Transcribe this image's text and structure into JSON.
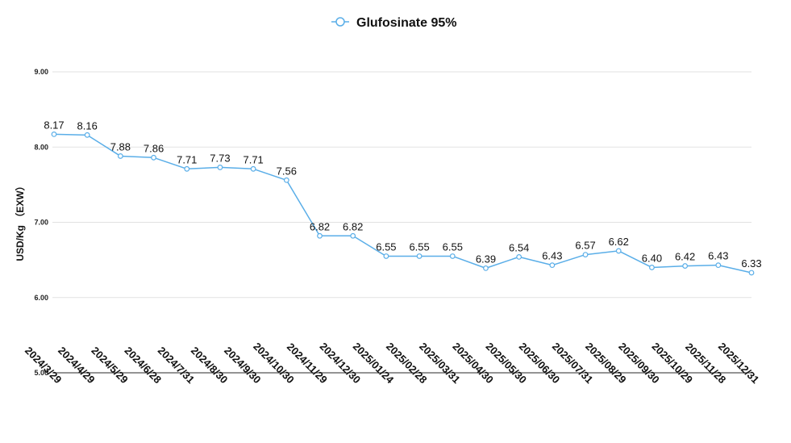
{
  "chart_data": {
    "type": "line",
    "title": "",
    "xlabel": "",
    "ylabel": "USD/Kg （EXW）",
    "ylim": [
      5,
      9
    ],
    "yticks": [
      "5.00",
      "6.00",
      "7.00",
      "8.00",
      "9.00"
    ],
    "grid": true,
    "legend_position": "top-center",
    "categories": [
      "2024/3/29",
      "2024/4/29",
      "2024/5/29",
      "2024/6/28",
      "2024/7/31",
      "2024/8/30",
      "2024/9/30",
      "2024/10/30",
      "2024/11/29",
      "2024/12/30",
      "2025/01/24",
      "2025/02/28",
      "2025/03/31",
      "2025/04/30",
      "2025/05/30",
      "2025/06/30",
      "2025/07/31",
      "2025/08/29",
      "2025/09/30",
      "2025/10/29",
      "2025/11/28",
      "2025/12/31"
    ],
    "series": [
      {
        "name": "Glufosinate 95%",
        "color": "#5aaee8",
        "values": [
          8.17,
          8.16,
          7.88,
          7.86,
          7.71,
          7.73,
          7.71,
          7.56,
          6.82,
          6.82,
          6.55,
          6.55,
          6.55,
          6.39,
          6.54,
          6.43,
          6.57,
          6.62,
          6.4,
          6.42,
          6.43,
          6.33
        ],
        "labels": [
          "8.17",
          "8.16",
          "7.88",
          "7.86",
          "7.71",
          "7.73",
          "7.71",
          "7.56",
          "6.82",
          "6.82",
          "6.55",
          "6.55",
          "6.55",
          "6.39",
          "6.54",
          "6.43",
          "6.57",
          "6.62",
          "6.40",
          "6.42",
          "6.43",
          "6.33"
        ]
      }
    ]
  }
}
